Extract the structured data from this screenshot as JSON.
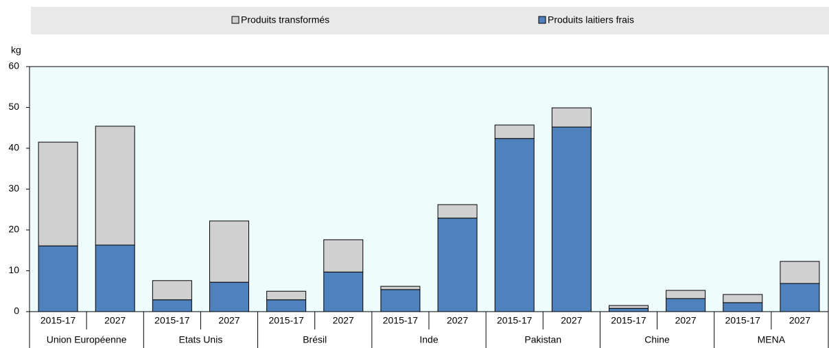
{
  "chart_data": {
    "type": "stacked_bar",
    "y_label": "kg",
    "groups": [
      "Union Européenne",
      "Etats Unis",
      "Brésil",
      "Inde",
      "Pakistan",
      "Chine",
      "MENA"
    ],
    "categories": [
      "2015-17",
      "2027",
      "2015-17",
      "2027",
      "2015-17",
      "2027",
      "2015-17",
      "2027",
      "2015-17",
      "2027",
      "2015-17",
      "2027",
      "2015-17",
      "2027"
    ],
    "series": [
      {
        "name": "Produits transformés",
        "color": "#d0d0d0",
        "values": [
          25.4,
          29.1,
          4.7,
          15.0,
          2.1,
          7.9,
          0.8,
          3.3,
          3.3,
          4.7,
          0.7,
          2.0,
          2.0,
          5.4
        ]
      },
      {
        "name": "Produits laitiers frais",
        "color": "#4f81bd",
        "values": [
          16.1,
          16.3,
          2.9,
          7.2,
          2.9,
          9.7,
          5.4,
          22.9,
          42.4,
          45.2,
          0.8,
          3.2,
          2.2,
          6.9
        ]
      }
    ],
    "ylim": [
      0,
      60
    ],
    "yticks": [
      0,
      10,
      20,
      30,
      40,
      50,
      60
    ],
    "grid": false
  }
}
